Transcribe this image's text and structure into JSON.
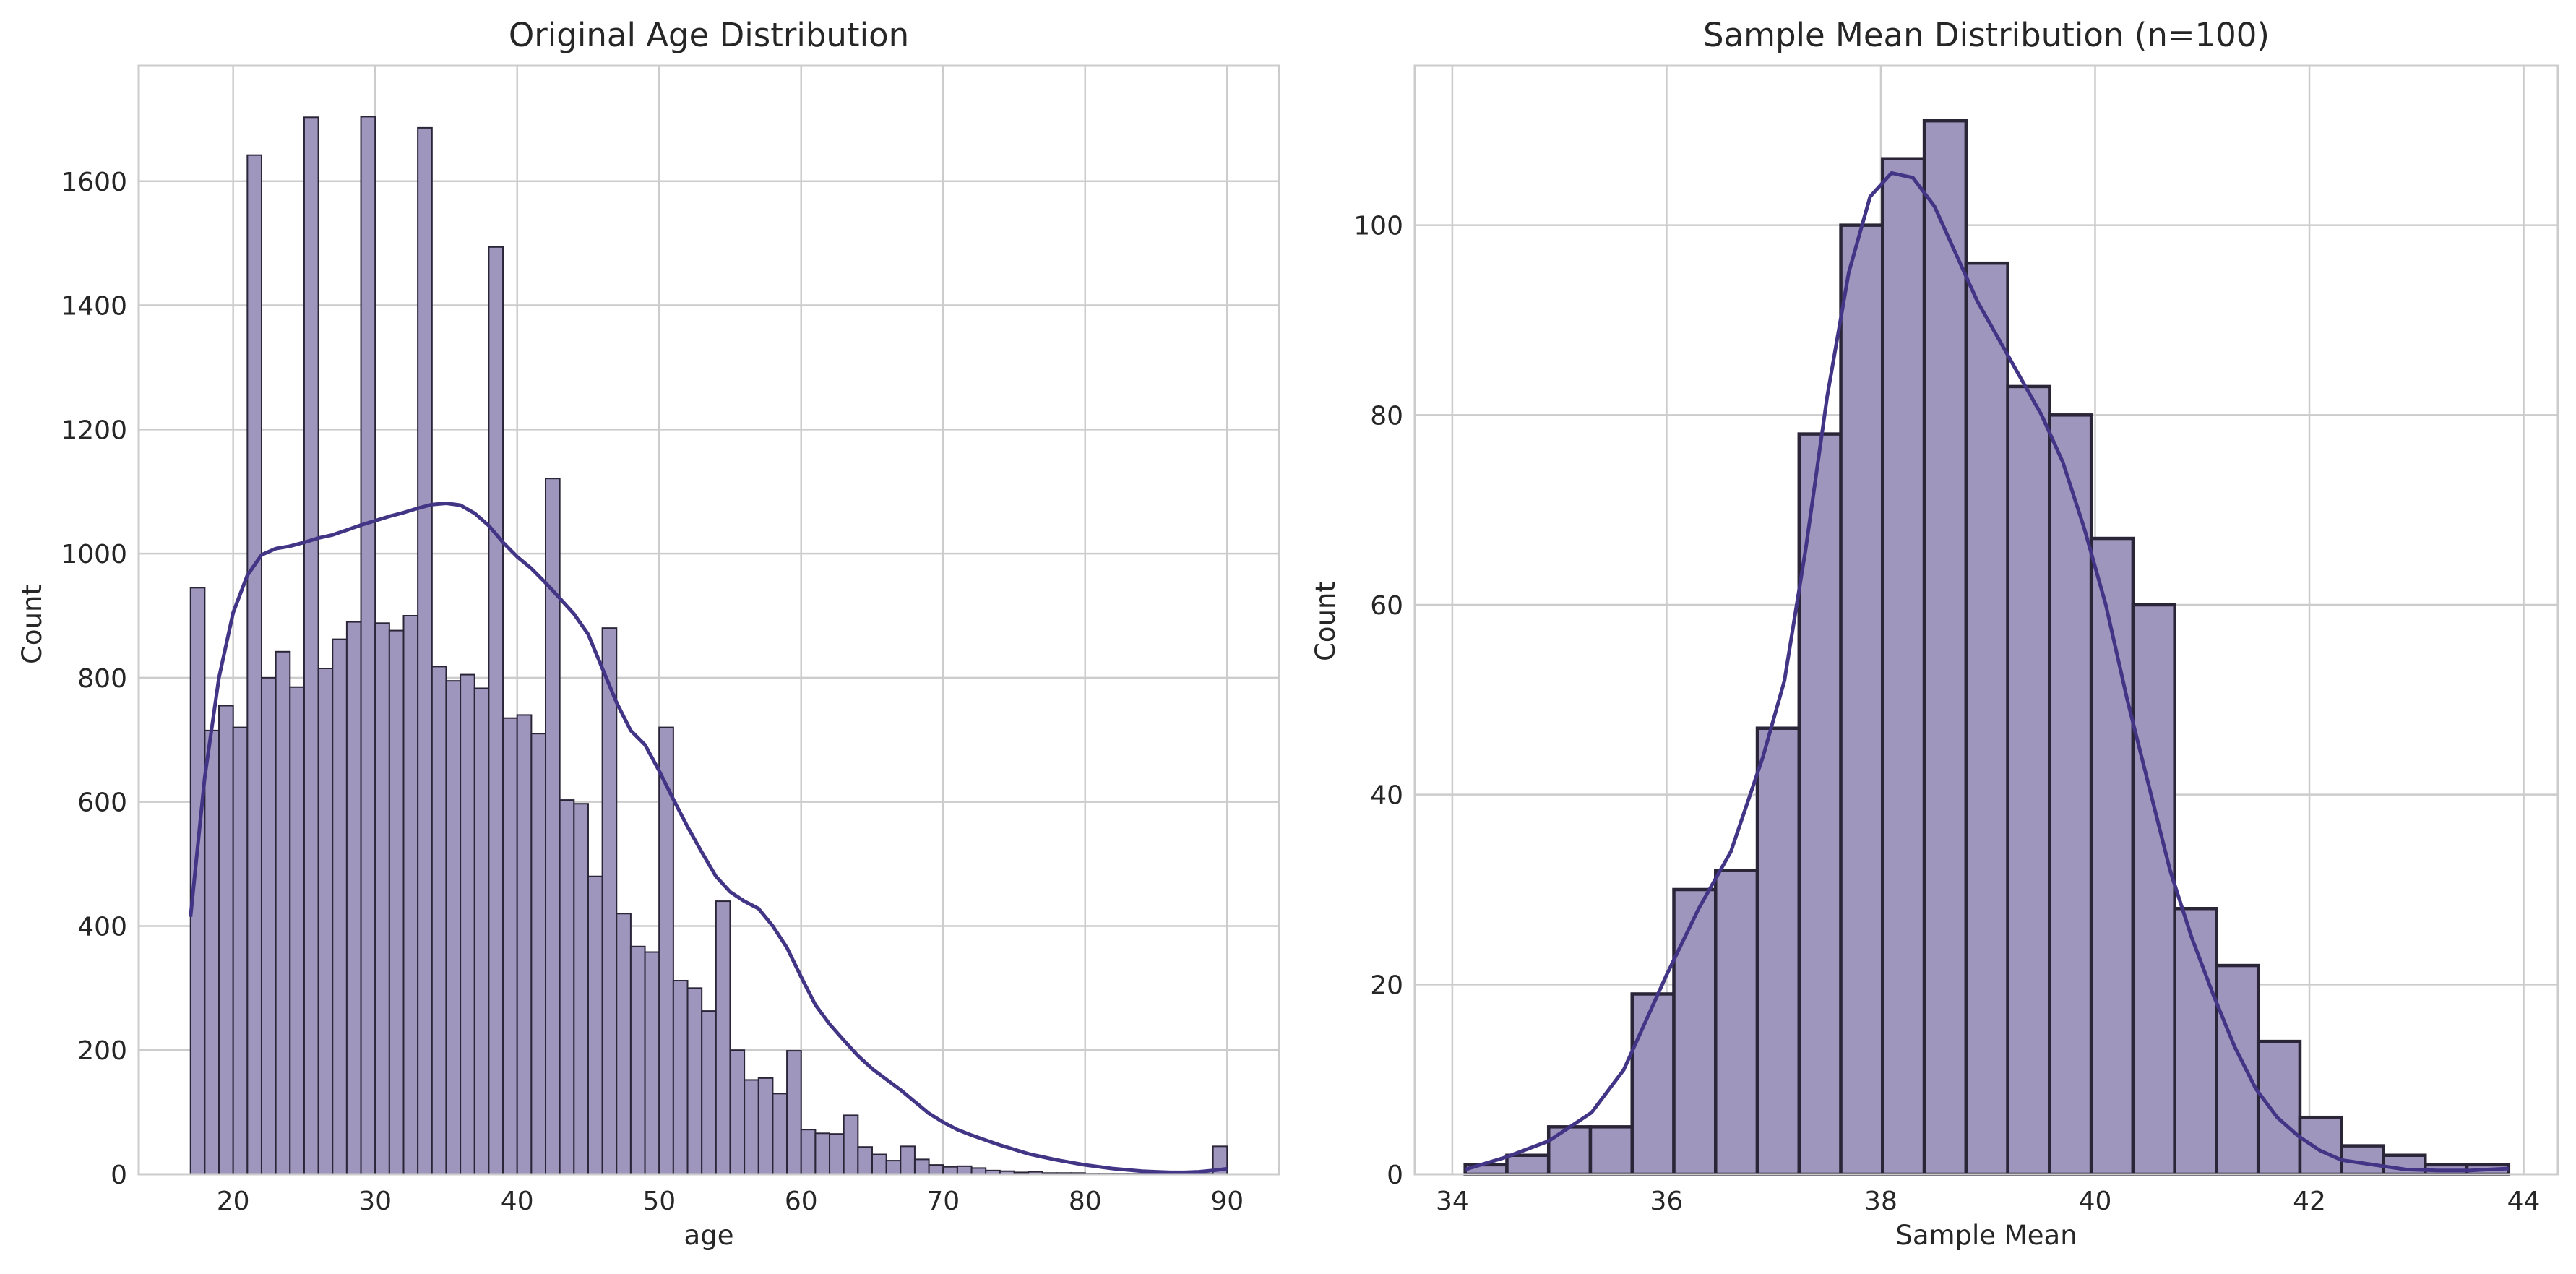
{
  "colors": {
    "bar_fill": "#9f96bd",
    "bar_edge": "#2b2538",
    "kde_line": "#433586",
    "grid": "#cccccc",
    "text": "#262626",
    "background": "#ffffff"
  },
  "chart_data": [
    {
      "type": "histogram",
      "title": "Original Age Distribution",
      "xlabel": "age",
      "ylabel": "Count",
      "xlim": [
        13.35,
        93.65
      ],
      "ylim": [
        0,
        1786
      ],
      "xticks": [
        20,
        30,
        40,
        50,
        60,
        70,
        80,
        90
      ],
      "yticks": [
        0,
        200,
        400,
        600,
        800,
        1000,
        1200,
        1400,
        1600
      ],
      "grid": true,
      "kde": true,
      "bin_range": [
        17,
        90
      ],
      "bins": 73,
      "values": [
        945,
        715,
        755,
        720,
        1642,
        800,
        842,
        785,
        1703,
        815,
        862,
        890,
        1704,
        888,
        876,
        900,
        1686,
        818,
        795,
        805,
        783,
        1494,
        735,
        740,
        710,
        1121,
        603,
        597,
        480,
        880,
        420,
        367,
        358,
        720,
        312,
        300,
        263,
        440,
        200,
        152,
        155,
        130,
        199,
        72,
        66,
        65,
        95,
        44,
        32,
        22,
        45,
        24,
        15,
        12,
        13,
        10,
        6,
        5,
        3,
        4,
        2,
        2,
        2,
        1,
        1,
        1,
        1,
        1,
        1,
        1,
        1,
        1,
        45
      ],
      "kde_points": {
        "x": [
          17,
          18,
          19,
          20,
          21,
          22,
          23,
          24,
          25,
          26,
          27,
          28,
          29,
          30,
          31,
          32,
          33,
          34,
          35,
          36,
          37,
          38,
          39,
          40,
          41,
          42,
          43,
          44,
          45,
          46,
          47,
          48,
          49,
          50,
          51,
          52,
          53,
          54,
          55,
          56,
          57,
          58,
          59,
          60,
          61,
          62,
          63,
          64,
          65,
          66,
          67,
          68,
          69,
          70,
          71,
          72,
          73,
          74,
          75,
          76,
          77,
          78,
          79,
          80,
          81,
          82,
          83,
          84,
          85,
          86,
          87,
          88,
          89,
          90
        ],
        "y": [
          415,
          640,
          800,
          905,
          965,
          998,
          1008,
          1012,
          1018,
          1025,
          1030,
          1038,
          1046,
          1053,
          1060,
          1066,
          1073,
          1079,
          1081,
          1078,
          1065,
          1045,
          1018,
          995,
          976,
          953,
          928,
          903,
          870,
          815,
          760,
          715,
          692,
          650,
          604,
          560,
          519,
          480,
          455,
          440,
          428,
          400,
          365,
          318,
          273,
          242,
          216,
          191,
          170,
          153,
          136,
          117,
          98,
          84,
          72,
          63,
          55,
          47,
          40,
          33,
          28,
          23,
          19,
          15,
          12,
          9,
          7,
          5,
          4,
          3,
          3,
          4,
          6,
          9
        ]
      }
    },
    {
      "type": "histogram",
      "title": "Sample Mean Distribution (n=100)",
      "xlabel": "Sample Mean",
      "ylabel": "Count",
      "xlim": [
        33.65,
        44.32
      ],
      "ylim": [
        0,
        116.8
      ],
      "xticks": [
        34,
        36,
        38,
        40,
        42,
        44
      ],
      "yticks": [
        0,
        20,
        40,
        60,
        80,
        100
      ],
      "grid": true,
      "kde": true,
      "bin_range": [
        34.12,
        43.86
      ],
      "bins": 25,
      "values": [
        1,
        2,
        5,
        5,
        19,
        30,
        32,
        47,
        78,
        100,
        107,
        111,
        96,
        83,
        80,
        67,
        60,
        28,
        22,
        14,
        6,
        3,
        2,
        1,
        1
      ],
      "kde_points": {
        "x": [
          34.12,
          34.5,
          34.9,
          35.3,
          35.6,
          35.8,
          36.0,
          36.3,
          36.6,
          36.9,
          37.1,
          37.3,
          37.5,
          37.7,
          37.9,
          38.1,
          38.3,
          38.5,
          38.7,
          38.9,
          39.1,
          39.3,
          39.5,
          39.7,
          39.9,
          40.1,
          40.3,
          40.5,
          40.7,
          40.9,
          41.1,
          41.3,
          41.5,
          41.7,
          41.9,
          42.1,
          42.3,
          42.6,
          42.9,
          43.2,
          43.5,
          43.86
        ],
        "y": [
          0.5,
          1.8,
          3.5,
          6.5,
          11,
          16,
          21,
          28,
          34,
          44,
          52,
          66,
          82,
          95,
          103,
          105.5,
          105,
          102,
          97,
          92,
          88,
          84,
          80,
          75,
          68,
          60,
          50,
          41,
          32,
          25,
          19,
          13.5,
          9,
          6,
          4,
          2.5,
          1.5,
          1,
          0.5,
          0.4,
          0.4,
          0.6
        ]
      }
    }
  ]
}
